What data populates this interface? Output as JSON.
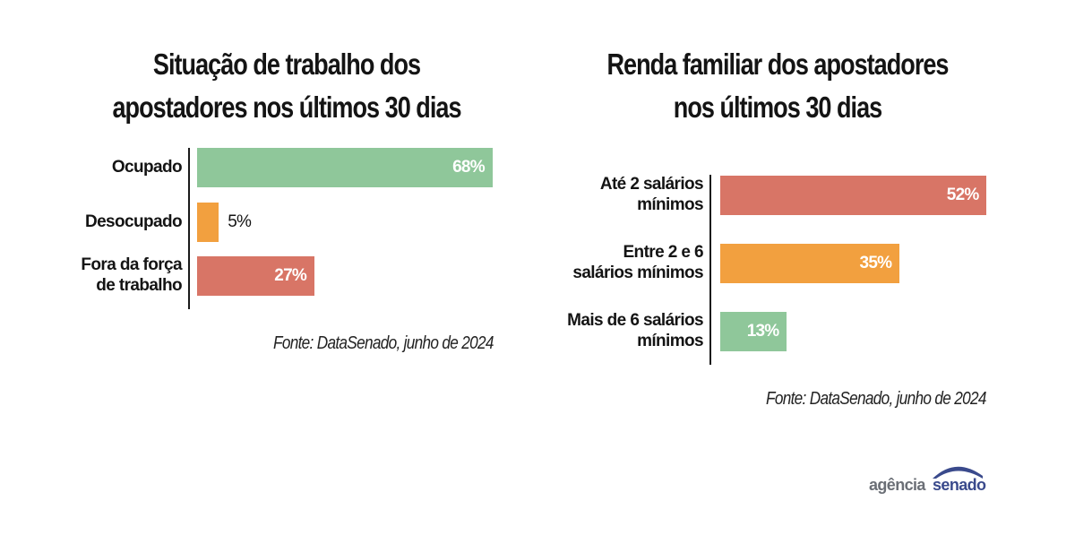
{
  "chart_data": [
    {
      "type": "bar",
      "orientation": "horizontal",
      "title": "Situação de trabalho dos apostadores nos últimos 30 dias",
      "title_lines": [
        "Situação de trabalho dos",
        "apostadores nos últimos 30 dias"
      ],
      "categories": [
        "Ocupado",
        "Desocupado",
        "Fora da força de trabalho"
      ],
      "category_lines": [
        [
          "Ocupado"
        ],
        [
          "Desocupado"
        ],
        [
          "Fora da força",
          "de trabalho"
        ]
      ],
      "values": [
        68,
        5,
        27
      ],
      "value_labels": [
        "68%",
        "5%",
        "27%"
      ],
      "colors": [
        "#8fc79a",
        "#f2a03f",
        "#d87566"
      ],
      "unit": "%",
      "xlim": [
        0,
        100
      ],
      "grid": false,
      "source": "Fonte: DataSenado, junho de 2024"
    },
    {
      "type": "bar",
      "orientation": "horizontal",
      "title": "Renda familiar dos apostadores nos últimos 30 dias",
      "title_lines": [
        "Renda familiar dos apostadores",
        "nos últimos 30 dias"
      ],
      "categories": [
        "Até 2 salários mínimos",
        "Entre 2 e 6 salários mínimos",
        "Mais de 6 salários mínimos"
      ],
      "category_lines": [
        [
          "Até 2 salários",
          "mínimos"
        ],
        [
          "Entre 2 e 6",
          "salários mínimos"
        ],
        [
          "Mais de 6 salários",
          "mínimos"
        ]
      ],
      "values": [
        52,
        35,
        13
      ],
      "value_labels": [
        "52%",
        "35%",
        "13%"
      ],
      "colors": [
        "#d87566",
        "#f2a03f",
        "#8fc79a"
      ],
      "unit": "%",
      "xlim": [
        0,
        100
      ],
      "grid": false,
      "source": "Fonte: DataSenado, junho de 2024"
    }
  ],
  "logo": {
    "part1": "agência",
    "part2": "senado",
    "arc_color": "#3a4a8c"
  }
}
